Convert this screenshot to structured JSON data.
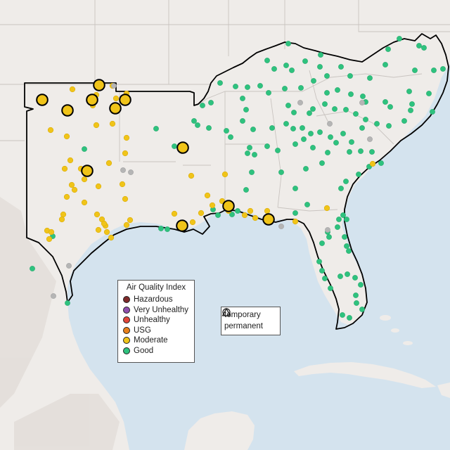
{
  "legend": {
    "title": "Air Quality Index",
    "items": [
      {
        "label": "Hazardous",
        "color": "#7e2a2a"
      },
      {
        "label": "Very Unhealthy",
        "color": "#8f4fae"
      },
      {
        "label": "Unhealthy",
        "color": "#e2463a"
      },
      {
        "label": "USG",
        "color": "#e8801c"
      },
      {
        "label": "Moderate",
        "color": "#f0c419"
      },
      {
        "label": "Good",
        "color": "#2ec27e"
      }
    ]
  },
  "shape_legend": {
    "items": [
      {
        "label": "temporary",
        "icon": "circle-icon"
      },
      {
        "label": "permanent",
        "icon": "triangle-icon"
      }
    ]
  },
  "colors": {
    "water": "#d4e3ee",
    "land": "#efece9",
    "land_relief": "#e4e0dc",
    "state_border": "#c9c4c0",
    "region_outline": "#000000",
    "good": "#2ec27e",
    "moderate": "#f0c419",
    "no_data": "#b5b5b5"
  }
}
